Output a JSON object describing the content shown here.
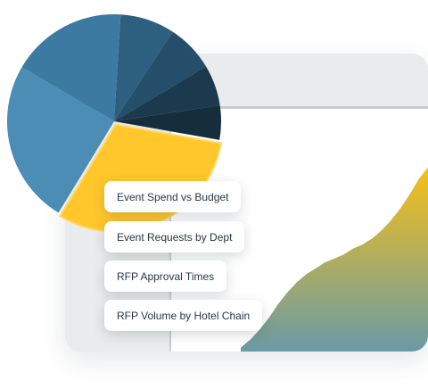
{
  "colors": {
    "panel_bg": "#eaebec",
    "chart_bg": "#ffffff",
    "area_top": "#f5c019",
    "area_bottom": "#6a9aa6",
    "pie_highlight": "#ffc72c",
    "text": "#253746"
  },
  "report_menu": {
    "items": [
      {
        "label": "Event Spend vs Budget"
      },
      {
        "label": "Event Requests by Dept"
      },
      {
        "label": "RFP Approval Times"
      },
      {
        "label": "RFP Volume by Hotel Chain"
      }
    ]
  },
  "chart_data": [
    {
      "type": "pie",
      "slices": [
        {
          "value": 30,
          "color": "#ffc72c"
        },
        {
          "value": 24,
          "color": "#4b8db5"
        },
        {
          "value": 17,
          "color": "#3c7aa2"
        },
        {
          "value": 8,
          "color": "#2d5f7e"
        },
        {
          "value": 7,
          "color": "#244e69"
        },
        {
          "value": 6,
          "color": "#1c3a4d"
        },
        {
          "value": 5,
          "color": "#162d3b"
        }
      ]
    },
    {
      "type": "area",
      "x": [
        0,
        5,
        10,
        15,
        20,
        25,
        30,
        35,
        40,
        45,
        50,
        55,
        60,
        65,
        70,
        75,
        80,
        85,
        90,
        95,
        100
      ],
      "values": [
        2,
        6,
        11,
        17,
        24,
        30,
        35,
        39,
        42,
        45,
        47,
        49,
        52,
        54,
        57,
        61,
        66,
        72,
        79,
        87,
        93
      ],
      "ylim": [
        0,
        100
      ]
    }
  ]
}
